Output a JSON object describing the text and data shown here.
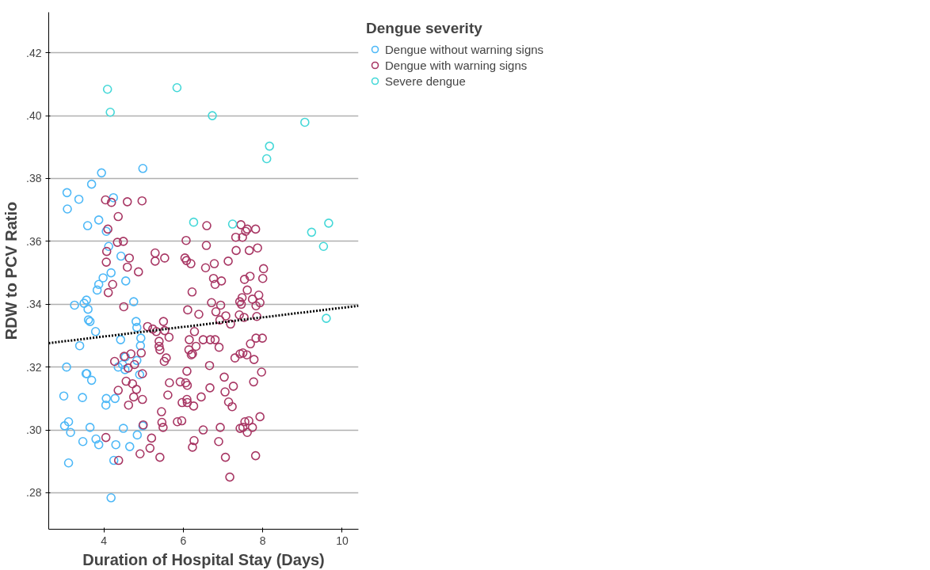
{
  "chart_data": {
    "type": "scatter",
    "xlabel": "Duration of Hospital Stay (Days)",
    "ylabel": "RDW to PCV Ratio",
    "legend_title": "Dengue severity",
    "xlim": [
      2.61,
      10.41
    ],
    "ylim": [
      0.2684,
      0.4329
    ],
    "xticks": [
      4,
      6,
      8,
      10
    ],
    "yticks": [
      {
        "value": 0.28,
        "label": ".28"
      },
      {
        "value": 0.3,
        "label": ".30"
      },
      {
        "value": 0.32,
        "label": ".32"
      },
      {
        "value": 0.34,
        "label": ".34"
      },
      {
        "value": 0.36,
        "label": ".36"
      },
      {
        "value": 0.38,
        "label": ".38"
      },
      {
        "value": 0.4,
        "label": ".40"
      },
      {
        "value": 0.42,
        "label": ".42"
      }
    ],
    "grid": "y",
    "legend": "top right",
    "marker": "circle",
    "series": [
      {
        "name": "Dengue without warning signs",
        "color": "#4db8f7",
        "x": [
          3.07,
          3.08,
          3.37,
          3.69,
          3.94,
          4.98,
          4.24,
          3.59,
          3.87,
          4.06,
          4.12,
          4.43,
          4.18,
          3.98,
          3.87,
          3.83,
          4.55,
          4.75,
          3.26,
          3.5,
          3.56,
          3.6,
          3.61,
          3.65,
          3.79,
          4.81,
          4.83,
          4.93,
          3.39,
          4.42,
          4.92,
          3.06,
          3.55,
          3.57,
          3.69,
          2.99,
          3.46,
          4.06,
          4.05,
          4.28,
          3.01,
          3.11,
          3.16,
          3.65,
          3.47,
          3.8,
          3.87,
          4.49,
          4.3,
          4.65,
          4.84,
          4.98,
          4.25,
          3.11,
          4.18,
          4.36,
          4.47,
          4.54,
          4.53,
          4.83,
          4.9
        ],
        "values": [
          0.3755,
          0.3703,
          0.3734,
          0.3782,
          0.3818,
          0.3832,
          0.3739,
          0.365,
          0.3668,
          0.3632,
          0.3584,
          0.3553,
          0.35,
          0.3484,
          0.3463,
          0.3445,
          0.3474,
          0.3408,
          0.3397,
          0.3403,
          0.3413,
          0.3384,
          0.335,
          0.3345,
          0.3313,
          0.3345,
          0.3326,
          0.3292,
          0.3268,
          0.3287,
          0.3268,
          0.32,
          0.3179,
          0.3179,
          0.3158,
          0.3108,
          0.3103,
          0.31,
          0.3079,
          0.31,
          0.3013,
          0.3026,
          0.2992,
          0.3008,
          0.2963,
          0.2971,
          0.2953,
          0.3005,
          0.2953,
          0.2947,
          0.2984,
          0.3013,
          0.2903,
          0.2895,
          0.2784,
          0.32,
          0.3208,
          0.3232,
          0.3192,
          0.3221,
          0.3176
        ]
      },
      {
        "name": "Dengue with warning signs",
        "color": "#a83764",
        "x": [
          4.04,
          4.19,
          4.59,
          4.96,
          4.36,
          4.1,
          4.34,
          4.49,
          4.07,
          4.06,
          4.64,
          4.59,
          4.87,
          4.22,
          4.11,
          4.5,
          5.29,
          5.29,
          5.53,
          6.07,
          6.04,
          6.08,
          6.19,
          6.22,
          6.11,
          6.39,
          5.5,
          5.1,
          5.23,
          5.32,
          5.53,
          5.64,
          5.39,
          6.28,
          6.15,
          6.5,
          5.39,
          5.41,
          6.14,
          6.2,
          6.23,
          6.32,
          4.94,
          4.68,
          4.51,
          4.27,
          4.77,
          4.61,
          5.52,
          5.57,
          4.97,
          6.09,
          4.56,
          4.72,
          4.82,
          4.36,
          4.75,
          4.97,
          4.62,
          5.65,
          5.92,
          6.06,
          6.1,
          5.61,
          5.97,
          6.09,
          6.1,
          6.26,
          6.45,
          5.45,
          5.46,
          5.49,
          5.85,
          5.96,
          4.99,
          4.05,
          5.2,
          5.16,
          4.91,
          5.41,
          6.27,
          6.23,
          4.37,
          6.5,
          6.59,
          6.58,
          6.56,
          6.78,
          7.13,
          7.45,
          7.32,
          7.49,
          7.57,
          7.61,
          7.82,
          7.33,
          7.66,
          7.87,
          6.76,
          6.8,
          6.96,
          8.02,
          8.0,
          7.54,
          7.68,
          7.61,
          7.9,
          7.74,
          7.93,
          7.83,
          6.71,
          6.94,
          7.42,
          7.48,
          7.46,
          6.82,
          7.07,
          7.41,
          7.53,
          6.92,
          7.85,
          7.19,
          6.68,
          6.8,
          6.9,
          7.69,
          7.83,
          7.99,
          7.3,
          7.43,
          7.5,
          7.6,
          7.78,
          6.66,
          7.97,
          7.03,
          6.67,
          7.26,
          7.77,
          7.05,
          7.14,
          7.23,
          6.93,
          7.43,
          7.5,
          7.55,
          7.65,
          7.74,
          7.61,
          7.93,
          6.89,
          7.06,
          7.82,
          7.17
        ],
        "values": [
          0.3732,
          0.3724,
          0.3726,
          0.3729,
          0.3679,
          0.3639,
          0.3597,
          0.36,
          0.3568,
          0.3534,
          0.3547,
          0.3518,
          0.3503,
          0.3463,
          0.3437,
          0.3392,
          0.3563,
          0.3537,
          0.3547,
          0.3603,
          0.3547,
          0.3539,
          0.3529,
          0.3439,
          0.3382,
          0.3368,
          0.3345,
          0.3329,
          0.3321,
          0.3313,
          0.3316,
          0.3295,
          0.3282,
          0.3313,
          0.3287,
          0.3287,
          0.3266,
          0.3255,
          0.3255,
          0.3239,
          0.3242,
          0.3266,
          0.3245,
          0.3242,
          0.3234,
          0.3218,
          0.3208,
          0.3197,
          0.3218,
          0.3229,
          0.3179,
          0.3187,
          0.3155,
          0.3147,
          0.3129,
          0.3126,
          0.3105,
          0.3097,
          0.3079,
          0.315,
          0.3153,
          0.315,
          0.3142,
          0.3111,
          0.3087,
          0.3097,
          0.3087,
          0.3076,
          0.3105,
          0.3058,
          0.3024,
          0.3008,
          0.3026,
          0.3029,
          0.3016,
          0.2976,
          0.2974,
          0.2942,
          0.2924,
          0.2913,
          0.2966,
          0.2945,
          0.2903,
          0.3,
          0.365,
          0.3587,
          0.3516,
          0.3529,
          0.3537,
          0.3653,
          0.3613,
          0.3613,
          0.3632,
          0.3639,
          0.3639,
          0.3571,
          0.3571,
          0.3579,
          0.3482,
          0.3463,
          0.3474,
          0.3513,
          0.3482,
          0.3479,
          0.3489,
          0.3445,
          0.3429,
          0.3416,
          0.3405,
          0.3395,
          0.3405,
          0.3397,
          0.3408,
          0.3421,
          0.34,
          0.3376,
          0.3363,
          0.3366,
          0.3358,
          0.335,
          0.3361,
          0.3337,
          0.3287,
          0.3287,
          0.3263,
          0.3274,
          0.3292,
          0.3292,
          0.3229,
          0.3242,
          0.3245,
          0.3239,
          0.3224,
          0.3205,
          0.3184,
          0.3168,
          0.3134,
          0.3139,
          0.3153,
          0.3121,
          0.3089,
          0.3074,
          0.3008,
          0.3005,
          0.3008,
          0.3026,
          0.3029,
          0.3008,
          0.2992,
          0.3042,
          0.2963,
          0.2913,
          0.2918,
          0.285
        ]
      },
      {
        "name": "Severe dengue",
        "color": "#45d8d8",
        "x": [
          4.09,
          4.16,
          5.84,
          6.73,
          9.06,
          8.1,
          8.17,
          6.26,
          7.24,
          9.23,
          9.53,
          9.66,
          9.6
        ],
        "values": [
          0.4084,
          0.4011,
          0.4089,
          0.4,
          0.3979,
          0.3863,
          0.3903,
          0.3661,
          0.3655,
          0.3629,
          0.3584,
          0.3658,
          0.3355
        ]
      },
      {
        "type": "line",
        "color": "#000000",
        "line_style": "dotted",
        "marker": "none",
        "x": [
          2.61,
          10.41
        ],
        "values": [
          0.3276,
          0.3395
        ]
      }
    ]
  }
}
